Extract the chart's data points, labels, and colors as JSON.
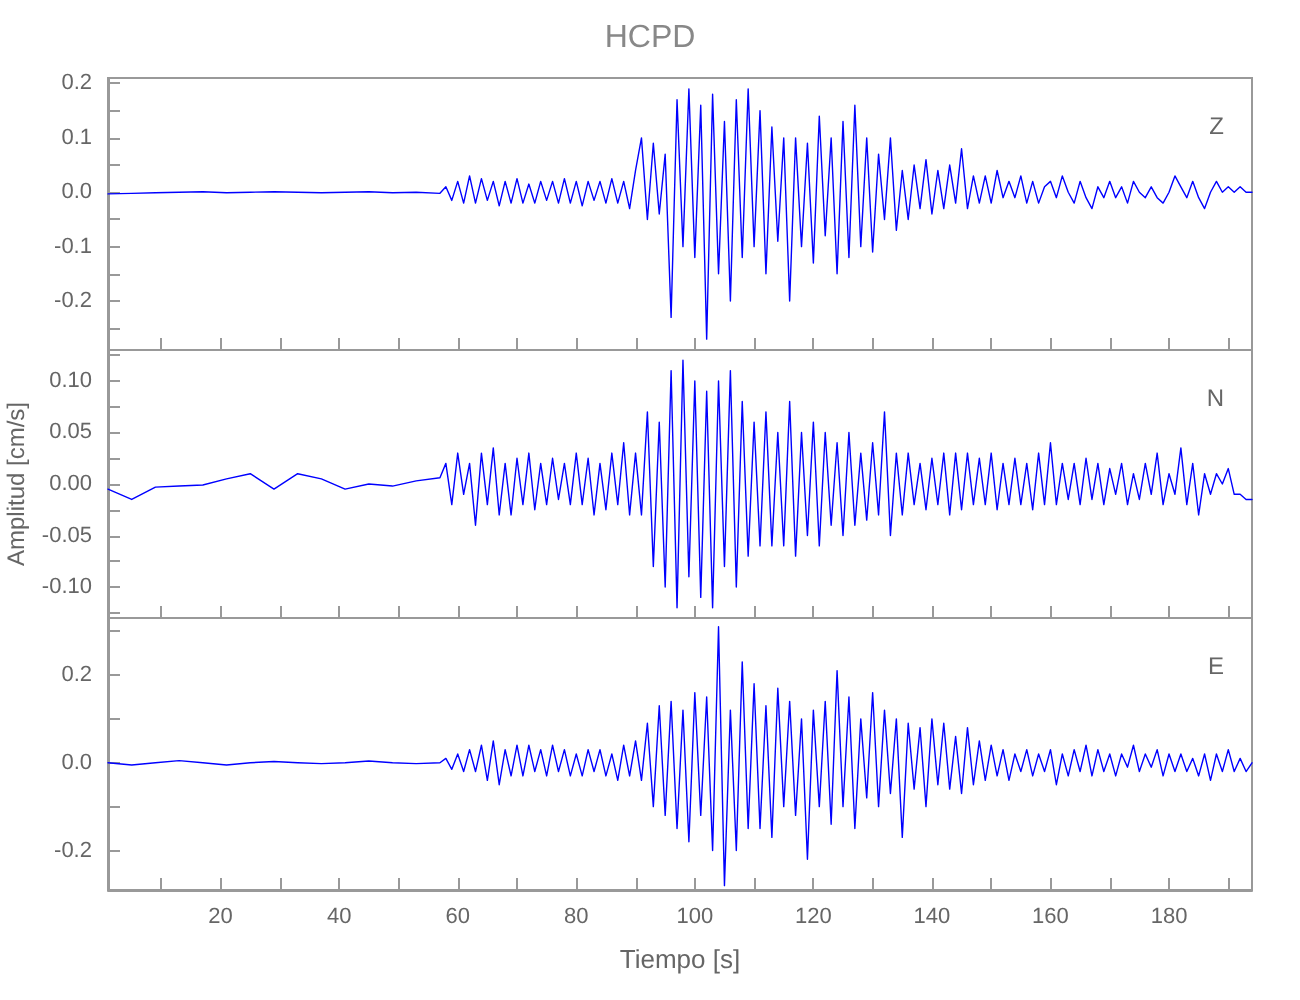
{
  "chart_data": [
    {
      "type": "line",
      "title": "HCPD",
      "annotations": [
        "Z"
      ],
      "tick_labels": "y",
      "grid": false,
      "marker": "none",
      "line_style": "solid",
      "xlim": [
        1,
        194
      ],
      "xticks": [
        {
          "value": 10,
          "label": null
        },
        20,
        {
          "value": 30,
          "label": null
        },
        40,
        {
          "value": 50,
          "label": null
        },
        60,
        {
          "value": 70,
          "label": null
        },
        80,
        {
          "value": 90,
          "label": null
        },
        100,
        {
          "value": 110,
          "label": null
        },
        120,
        {
          "value": 130,
          "label": null
        },
        140,
        {
          "value": 150,
          "label": null
        },
        160,
        {
          "value": 170,
          "label": null
        },
        180,
        {
          "value": 190,
          "label": null
        }
      ],
      "ylim": [
        -0.29,
        0.21
      ],
      "yticks": [
        {
          "value": -0.25,
          "label": null
        },
        -0.2,
        {
          "value": -0.15,
          "label": null
        },
        -0.1,
        {
          "value": -0.05,
          "label": null
        },
        {
          "value": 0,
          "label": "0.0"
        },
        {
          "value": 0.05,
          "label": null
        },
        0.1,
        {
          "value": 0.15,
          "label": null
        },
        0.2
      ],
      "x": [
        1,
        5,
        9,
        13,
        17,
        21,
        25,
        29,
        33,
        37,
        41,
        45,
        49,
        53,
        57,
        58,
        59,
        60,
        61,
        62,
        63,
        64,
        65,
        66,
        67,
        68,
        69,
        70,
        71,
        72,
        73,
        74,
        75,
        76,
        77,
        78,
        79,
        80,
        81,
        82,
        83,
        84,
        85,
        86,
        87,
        88,
        89,
        90,
        91,
        92,
        93,
        94,
        95,
        96,
        97,
        98,
        99,
        100,
        101,
        102,
        103,
        104,
        105,
        106,
        107,
        108,
        109,
        110,
        111,
        112,
        113,
        114,
        115,
        116,
        117,
        118,
        119,
        120,
        121,
        122,
        123,
        124,
        125,
        126,
        127,
        128,
        129,
        130,
        131,
        132,
        133,
        134,
        135,
        136,
        137,
        138,
        139,
        140,
        141,
        142,
        143,
        144,
        145,
        146,
        147,
        148,
        149,
        150,
        151,
        152,
        153,
        154,
        155,
        156,
        157,
        158,
        159,
        160,
        161,
        162,
        163,
        164,
        165,
        166,
        167,
        168,
        169,
        170,
        171,
        172,
        173,
        174,
        175,
        176,
        177,
        178,
        179,
        180,
        181,
        182,
        183,
        184,
        185,
        186,
        187,
        188,
        189,
        190,
        191,
        192,
        193,
        194
      ],
      "series": [
        {
          "color": "#0000ff",
          "values": [
            -0.003,
            -0.002,
            -0.001,
            0.0,
            0.001,
            -0.001,
            0.0,
            0.001,
            0.0,
            -0.001,
            0.0,
            0.001,
            -0.001,
            0.0,
            -0.002,
            0.01,
            -0.015,
            0.02,
            -0.02,
            0.03,
            -0.02,
            0.025,
            -0.015,
            0.02,
            -0.025,
            0.02,
            -0.02,
            0.025,
            -0.02,
            0.015,
            -0.02,
            0.02,
            -0.015,
            0.02,
            -0.02,
            0.025,
            -0.02,
            0.02,
            -0.025,
            0.02,
            -0.015,
            0.02,
            -0.02,
            0.025,
            -0.02,
            0.02,
            -0.03,
            0.04,
            0.1,
            -0.05,
            0.09,
            -0.04,
            0.07,
            -0.23,
            0.17,
            -0.1,
            0.19,
            -0.12,
            0.16,
            -0.27,
            0.18,
            -0.15,
            0.13,
            -0.2,
            0.17,
            -0.12,
            0.19,
            -0.1,
            0.15,
            -0.15,
            0.12,
            -0.09,
            0.1,
            -0.2,
            0.1,
            -0.1,
            0.09,
            -0.13,
            0.14,
            -0.08,
            0.1,
            -0.15,
            0.13,
            -0.12,
            0.16,
            -0.1,
            0.1,
            -0.11,
            0.07,
            -0.05,
            0.1,
            -0.07,
            0.04,
            -0.05,
            0.05,
            -0.03,
            0.06,
            -0.04,
            0.04,
            -0.03,
            0.05,
            -0.02,
            0.08,
            -0.03,
            0.03,
            -0.02,
            0.03,
            -0.02,
            0.04,
            -0.01,
            0.02,
            -0.01,
            0.03,
            -0.02,
            0.02,
            -0.02,
            0.01,
            0.02,
            -0.01,
            0.03,
            0.0,
            -0.02,
            0.02,
            -0.01,
            -0.03,
            0.01,
            -0.01,
            0.02,
            -0.01,
            0.01,
            -0.02,
            0.02,
            0.0,
            -0.01,
            0.01,
            -0.01,
            -0.02,
            0.0,
            0.03,
            0.01,
            -0.01,
            0.02,
            -0.01,
            -0.03,
            0.0,
            0.02,
            0.0,
            0.01,
            0.0,
            0.01,
            0.0,
            0.0
          ]
        }
      ]
    },
    {
      "type": "line",
      "ylabel": "Amplitud [cm/s]",
      "annotations": [
        "N"
      ],
      "tick_labels": "y",
      "grid": false,
      "marker": "none",
      "line_style": "solid",
      "xlim": [
        1,
        194
      ],
      "xticks": [
        {
          "value": 10,
          "label": null
        },
        20,
        {
          "value": 30,
          "label": null
        },
        40,
        {
          "value": 50,
          "label": null
        },
        60,
        {
          "value": 70,
          "label": null
        },
        80,
        {
          "value": 90,
          "label": null
        },
        100,
        {
          "value": 110,
          "label": null
        },
        120,
        {
          "value": 130,
          "label": null
        },
        140,
        {
          "value": 150,
          "label": null
        },
        160,
        {
          "value": 170,
          "label": null
        },
        180,
        {
          "value": 190,
          "label": null
        }
      ],
      "ylim": [
        -0.13,
        0.13
      ],
      "yticks": [
        {
          "value": -0.125,
          "label": null
        },
        {
          "value": -0.1,
          "label": "-0.10"
        },
        {
          "value": -0.075,
          "label": null
        },
        -0.05,
        {
          "value": -0.025,
          "label": null
        },
        {
          "value": 0,
          "label": "0.00"
        },
        {
          "value": 0.025,
          "label": null
        },
        0.05,
        {
          "value": 0.075,
          "label": null
        },
        {
          "value": 0.1,
          "label": "0.10"
        },
        {
          "value": 0.125,
          "label": null
        }
      ],
      "x": [
        1,
        5,
        9,
        13,
        17,
        21,
        25,
        29,
        33,
        37,
        41,
        45,
        49,
        53,
        57,
        58,
        59,
        60,
        61,
        62,
        63,
        64,
        65,
        66,
        67,
        68,
        69,
        70,
        71,
        72,
        73,
        74,
        75,
        76,
        77,
        78,
        79,
        80,
        81,
        82,
        83,
        84,
        85,
        86,
        87,
        88,
        89,
        90,
        91,
        92,
        93,
        94,
        95,
        96,
        97,
        98,
        99,
        100,
        101,
        102,
        103,
        104,
        105,
        106,
        107,
        108,
        109,
        110,
        111,
        112,
        113,
        114,
        115,
        116,
        117,
        118,
        119,
        120,
        121,
        122,
        123,
        124,
        125,
        126,
        127,
        128,
        129,
        130,
        131,
        132,
        133,
        134,
        135,
        136,
        137,
        138,
        139,
        140,
        141,
        142,
        143,
        144,
        145,
        146,
        147,
        148,
        149,
        150,
        151,
        152,
        153,
        154,
        155,
        156,
        157,
        158,
        159,
        160,
        161,
        162,
        163,
        164,
        165,
        166,
        167,
        168,
        169,
        170,
        171,
        172,
        173,
        174,
        175,
        176,
        177,
        178,
        179,
        180,
        181,
        182,
        183,
        184,
        185,
        186,
        187,
        188,
        189,
        190,
        191,
        192,
        193,
        194
      ],
      "series": [
        {
          "color": "#0000ff",
          "values": [
            -0.005,
            -0.015,
            -0.003,
            -0.002,
            -0.001,
            0.005,
            0.01,
            -0.005,
            0.01,
            0.005,
            -0.005,
            0.0,
            -0.002,
            0.003,
            0.006,
            0.02,
            -0.02,
            0.03,
            -0.01,
            0.02,
            -0.04,
            0.03,
            -0.02,
            0.035,
            -0.03,
            0.02,
            -0.03,
            0.025,
            -0.02,
            0.03,
            -0.025,
            0.02,
            -0.02,
            0.025,
            -0.015,
            0.02,
            -0.02,
            0.03,
            -0.02,
            0.025,
            -0.03,
            0.02,
            -0.025,
            0.03,
            -0.02,
            0.04,
            -0.03,
            0.03,
            -0.03,
            0.07,
            -0.08,
            0.06,
            -0.1,
            0.11,
            -0.12,
            0.12,
            -0.09,
            0.1,
            -0.11,
            0.09,
            -0.12,
            0.1,
            -0.08,
            0.11,
            -0.1,
            0.08,
            -0.07,
            0.06,
            -0.06,
            0.07,
            -0.06,
            0.05,
            -0.06,
            0.08,
            -0.07,
            0.05,
            -0.05,
            0.06,
            -0.06,
            0.05,
            -0.04,
            0.04,
            -0.05,
            0.05,
            -0.04,
            0.03,
            -0.035,
            0.04,
            -0.03,
            0.07,
            -0.05,
            0.03,
            -0.03,
            0.03,
            -0.02,
            0.02,
            -0.025,
            0.025,
            -0.02,
            0.03,
            -0.03,
            0.03,
            -0.025,
            0.03,
            -0.02,
            0.025,
            -0.02,
            0.03,
            -0.025,
            0.02,
            -0.02,
            0.025,
            -0.02,
            0.02,
            -0.025,
            0.03,
            -0.02,
            0.04,
            -0.02,
            0.02,
            -0.015,
            0.02,
            -0.02,
            0.025,
            -0.015,
            0.02,
            -0.02,
            0.015,
            -0.01,
            0.02,
            -0.02,
            0.01,
            -0.015,
            0.02,
            -0.01,
            0.03,
            -0.02,
            0.01,
            -0.01,
            0.035,
            -0.02,
            0.02,
            -0.03,
            0.01,
            -0.01,
            0.01,
            0.0,
            0.015,
            -0.01,
            -0.01,
            -0.015,
            -0.015
          ]
        }
      ]
    },
    {
      "type": "line",
      "xlabel": "Tiempo [s]",
      "annotations": [
        "E"
      ],
      "grid": false,
      "marker": "none",
      "line_style": "solid",
      "xlim": [
        1,
        194
      ],
      "xticks": [
        {
          "value": 10,
          "label": null
        },
        20,
        {
          "value": 30,
          "label": null
        },
        40,
        {
          "value": 50,
          "label": null
        },
        60,
        {
          "value": 70,
          "label": null
        },
        80,
        {
          "value": 90,
          "label": null
        },
        100,
        {
          "value": 110,
          "label": null
        },
        120,
        {
          "value": 130,
          "label": null
        },
        140,
        {
          "value": 150,
          "label": null
        },
        160,
        {
          "value": 170,
          "label": null
        },
        180,
        {
          "value": 190,
          "label": null
        }
      ],
      "ylim": [
        -0.29,
        0.33
      ],
      "yticks": [
        -0.2,
        {
          "value": -0.1,
          "label": null
        },
        {
          "value": 0,
          "label": "0.0"
        },
        {
          "value": 0.1,
          "label": null
        },
        0.2,
        {
          "value": 0.3,
          "label": null
        }
      ],
      "x": [
        1,
        5,
        9,
        13,
        17,
        21,
        25,
        29,
        33,
        37,
        41,
        45,
        49,
        53,
        57,
        58,
        59,
        60,
        61,
        62,
        63,
        64,
        65,
        66,
        67,
        68,
        69,
        70,
        71,
        72,
        73,
        74,
        75,
        76,
        77,
        78,
        79,
        80,
        81,
        82,
        83,
        84,
        85,
        86,
        87,
        88,
        89,
        90,
        91,
        92,
        93,
        94,
        95,
        96,
        97,
        98,
        99,
        100,
        101,
        102,
        103,
        104,
        105,
        106,
        107,
        108,
        109,
        110,
        111,
        112,
        113,
        114,
        115,
        116,
        117,
        118,
        119,
        120,
        121,
        122,
        123,
        124,
        125,
        126,
        127,
        128,
        129,
        130,
        131,
        132,
        133,
        134,
        135,
        136,
        137,
        138,
        139,
        140,
        141,
        142,
        143,
        144,
        145,
        146,
        147,
        148,
        149,
        150,
        151,
        152,
        153,
        154,
        155,
        156,
        157,
        158,
        159,
        160,
        161,
        162,
        163,
        164,
        165,
        166,
        167,
        168,
        169,
        170,
        171,
        172,
        173,
        174,
        175,
        176,
        177,
        178,
        179,
        180,
        181,
        182,
        183,
        184,
        185,
        186,
        187,
        188,
        189,
        190,
        191,
        192,
        193,
        194
      ],
      "series": [
        {
          "color": "#0000ff",
          "values": [
            0.0,
            -0.005,
            0.0,
            0.005,
            0.0,
            -0.005,
            0.0,
            0.003,
            0.0,
            -0.002,
            0.0,
            0.004,
            0.0,
            -0.002,
            0.0,
            0.01,
            -0.015,
            0.02,
            -0.02,
            0.03,
            -0.02,
            0.04,
            -0.04,
            0.05,
            -0.05,
            0.03,
            -0.03,
            0.04,
            -0.03,
            0.04,
            -0.02,
            0.03,
            -0.03,
            0.04,
            -0.02,
            0.03,
            -0.03,
            0.02,
            -0.03,
            0.03,
            -0.02,
            0.03,
            -0.03,
            0.02,
            -0.04,
            0.04,
            -0.03,
            0.05,
            -0.04,
            0.09,
            -0.1,
            0.13,
            -0.12,
            0.14,
            -0.15,
            0.12,
            -0.18,
            0.16,
            -0.12,
            0.15,
            -0.2,
            0.31,
            -0.28,
            0.12,
            -0.2,
            0.23,
            -0.15,
            0.18,
            -0.15,
            0.13,
            -0.17,
            0.17,
            -0.1,
            0.14,
            -0.12,
            0.1,
            -0.22,
            0.12,
            -0.1,
            0.14,
            -0.14,
            0.21,
            -0.1,
            0.15,
            -0.15,
            0.1,
            -0.08,
            0.16,
            -0.1,
            0.12,
            -0.07,
            0.1,
            -0.17,
            0.09,
            -0.06,
            0.08,
            -0.1,
            0.1,
            -0.05,
            0.09,
            -0.06,
            0.06,
            -0.07,
            0.08,
            -0.05,
            0.05,
            -0.04,
            0.04,
            -0.03,
            0.03,
            -0.04,
            0.02,
            -0.02,
            0.03,
            -0.03,
            0.02,
            -0.02,
            0.03,
            -0.05,
            0.02,
            -0.03,
            0.03,
            -0.02,
            0.04,
            -0.03,
            0.03,
            -0.02,
            0.02,
            -0.03,
            0.02,
            -0.01,
            0.04,
            -0.02,
            0.02,
            -0.01,
            0.03,
            -0.03,
            0.02,
            -0.02,
            0.02,
            -0.02,
            0.01,
            -0.03,
            0.02,
            -0.04,
            0.02,
            -0.02,
            0.03,
            -0.02,
            0.01,
            -0.02,
            0.0
          ]
        }
      ]
    }
  ]
}
